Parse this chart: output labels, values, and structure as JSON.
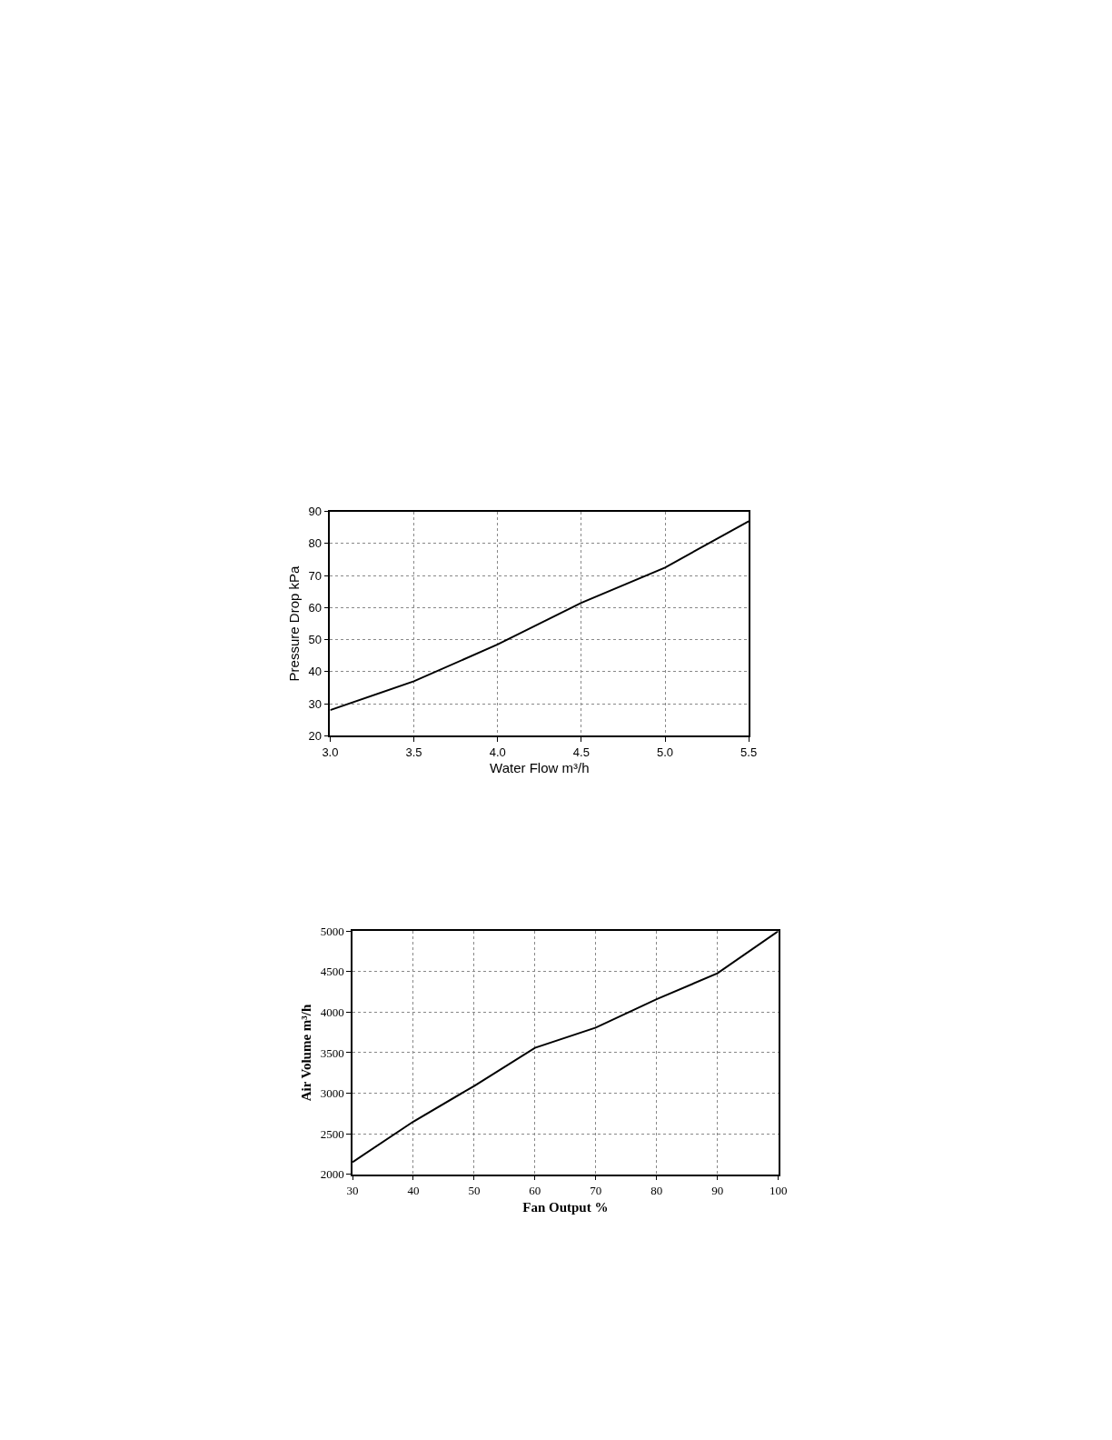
{
  "chart_data": [
    {
      "type": "line",
      "xlabel": "Water Flow m³/h",
      "ylabel": "Pressure Drop kPa",
      "x": [
        3.0,
        3.5,
        4.0,
        4.5,
        5.0,
        5.5
      ],
      "series": [
        {
          "color": "#000000",
          "values": [
            28,
            37,
            48.5,
            61.5,
            72.5,
            87
          ]
        }
      ],
      "xlim": [
        3.0,
        5.5
      ],
      "ylim": [
        20,
        90
      ],
      "xticks": [
        {
          "value": 3.0,
          "label": "3.0"
        },
        3.5,
        {
          "value": 4.0,
          "label": "4.0"
        },
        4.5,
        {
          "value": 5.0,
          "label": "5.0"
        },
        5.5
      ],
      "yticks": [
        20,
        30,
        40,
        50,
        60,
        70,
        80,
        90
      ],
      "grid": true,
      "line_style": "solid"
    },
    {
      "type": "line",
      "xlabel": "Fan Output %",
      "ylabel": "Air Volume m³/h",
      "x": [
        30,
        40,
        50,
        60,
        70,
        80,
        90,
        100
      ],
      "series": [
        {
          "color": "#000000",
          "values": [
            2150,
            2650,
            3090,
            3560,
            3810,
            4160,
            4480,
            5000
          ]
        }
      ],
      "xlim": [
        30,
        100
      ],
      "ylim": [
        2000,
        5000
      ],
      "xticks": [
        30,
        40,
        50,
        60,
        70,
        80,
        90,
        100
      ],
      "yticks": [
        2000,
        2500,
        3000,
        3500,
        4000,
        4500,
        5000
      ],
      "grid": true,
      "line_style": "solid"
    }
  ]
}
